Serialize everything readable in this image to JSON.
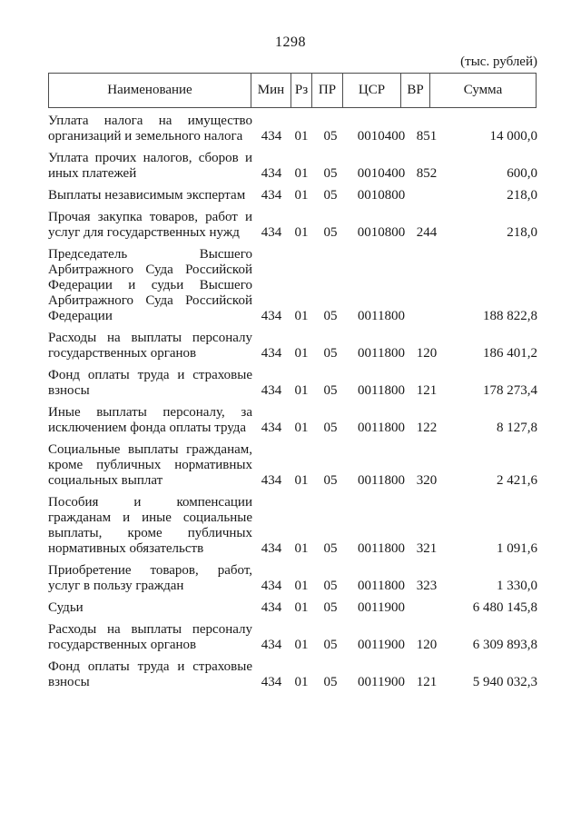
{
  "page": {
    "number": "1298",
    "units_label": "(тыс. рублей)"
  },
  "table": {
    "columns": [
      {
        "key": "name",
        "label": "Наименование"
      },
      {
        "key": "min",
        "label": "Мин"
      },
      {
        "key": "rz",
        "label": "Рз"
      },
      {
        "key": "pr",
        "label": "ПР"
      },
      {
        "key": "csr",
        "label": "ЦСР"
      },
      {
        "key": "vr",
        "label": "ВР"
      },
      {
        "key": "sum",
        "label": "Сумма"
      }
    ],
    "rows": [
      {
        "name": "Уплата налога на имущество организаций и земельного налога",
        "min": "434",
        "rz": "01",
        "pr": "05",
        "csr": "0010400",
        "vr": "851",
        "sum": "14 000,0"
      },
      {
        "name": "Уплата прочих налогов, сборов и иных платежей",
        "min": "434",
        "rz": "01",
        "pr": "05",
        "csr": "0010400",
        "vr": "852",
        "sum": "600,0"
      },
      {
        "name": "Выплаты независимым экспертам",
        "min": "434",
        "rz": "01",
        "pr": "05",
        "csr": "0010800",
        "vr": "",
        "sum": "218,0"
      },
      {
        "name": "Прочая закупка товаров, работ и услуг для государственных нужд",
        "min": "434",
        "rz": "01",
        "pr": "05",
        "csr": "0010800",
        "vr": "244",
        "sum": "218,0"
      },
      {
        "name": "Председатель Высшего Арбитражного Суда Российской Федерации и судьи Высшего Арбитражного Суда Российской Федерации",
        "min": "434",
        "rz": "01",
        "pr": "05",
        "csr": "0011800",
        "vr": "",
        "sum": "188 822,8"
      },
      {
        "name": "Расходы на выплаты персоналу государственных органов",
        "min": "434",
        "rz": "01",
        "pr": "05",
        "csr": "0011800",
        "vr": "120",
        "sum": "186 401,2"
      },
      {
        "name": "Фонд оплаты труда и страховые взносы",
        "min": "434",
        "rz": "01",
        "pr": "05",
        "csr": "0011800",
        "vr": "121",
        "sum": "178 273,4"
      },
      {
        "name": "Иные выплаты персоналу, за исключением фонда оплаты труда",
        "min": "434",
        "rz": "01",
        "pr": "05",
        "csr": "0011800",
        "vr": "122",
        "sum": "8 127,8"
      },
      {
        "name": "Социальные выплаты гражданам, кроме публичных нормативных социальных выплат",
        "min": "434",
        "rz": "01",
        "pr": "05",
        "csr": "0011800",
        "vr": "320",
        "sum": "2 421,6"
      },
      {
        "name": "Пособия и компенсации гражданам и иные социальные выплаты, кроме публичных нормативных обязательств",
        "min": "434",
        "rz": "01",
        "pr": "05",
        "csr": "0011800",
        "vr": "321",
        "sum": "1 091,6"
      },
      {
        "name": "Приобретение товаров, работ, услуг в пользу граждан",
        "min": "434",
        "rz": "01",
        "pr": "05",
        "csr": "0011800",
        "vr": "323",
        "sum": "1 330,0"
      },
      {
        "name": "Судьи",
        "min": "434",
        "rz": "01",
        "pr": "05",
        "csr": "0011900",
        "vr": "",
        "sum": "6 480 145,8"
      },
      {
        "name": "Расходы на выплаты персоналу государственных органов",
        "min": "434",
        "rz": "01",
        "pr": "05",
        "csr": "0011900",
        "vr": "120",
        "sum": "6 309 893,8"
      },
      {
        "name": "Фонд оплаты труда и страховые взносы",
        "min": "434",
        "rz": "01",
        "pr": "05",
        "csr": "0011900",
        "vr": "121",
        "sum": "5 940 032,3"
      }
    ]
  }
}
